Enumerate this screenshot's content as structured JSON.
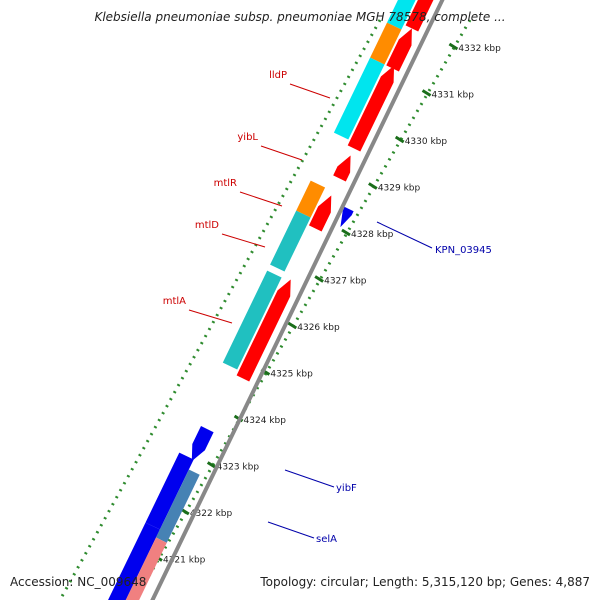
{
  "title": "Klebsiella pneumoniae subsp. pneumoniae MGH 78578, complete ...",
  "footer": {
    "accession": "Accession: NC_009648",
    "summary": "Topology: circular; Length: 5,315,120 bp; Genes: 4,887"
  },
  "colors": {
    "backbone": "#888888",
    "tick": "#2e8b2e",
    "forward_red": "#ff0000",
    "reverse_blue": "#0000ee",
    "cyan": "#00e5ee",
    "teal": "#20c0c0",
    "orange": "#ff8c00",
    "steelblue": "#4682b4",
    "pink": "#f08080",
    "label_red": "#cc0000",
    "label_blue": "#0000aa"
  },
  "ticks": [
    {
      "label": "4332 kbp"
    },
    {
      "label": "4331 kbp"
    },
    {
      "label": "4330 kbp"
    },
    {
      "label": "4329 kbp"
    },
    {
      "label": "4328 kbp"
    },
    {
      "label": "4327 kbp"
    },
    {
      "label": "4326 kbp"
    },
    {
      "label": "4325 kbp"
    },
    {
      "label": "4324 kbp"
    },
    {
      "label": "4323 kbp"
    },
    {
      "label": "4322 kbp"
    },
    {
      "label": "4321 kbp"
    }
  ],
  "gene_labels": [
    {
      "name": "lldP",
      "color": "label_red"
    },
    {
      "name": "yibL",
      "color": "label_red"
    },
    {
      "name": "mtlR",
      "color": "label_red"
    },
    {
      "name": "mtlD",
      "color": "label_red"
    },
    {
      "name": "mtlA",
      "color": "label_red"
    },
    {
      "name": "KPN_03945",
      "color": "label_blue"
    },
    {
      "name": "yibF",
      "color": "label_blue"
    },
    {
      "name": "selA",
      "color": "label_blue"
    }
  ]
}
